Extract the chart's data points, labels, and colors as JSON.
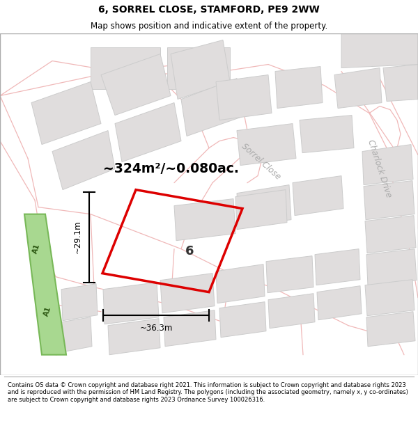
{
  "title": "6, SORREL CLOSE, STAMFORD, PE9 2WW",
  "subtitle": "Map shows position and indicative extent of the property.",
  "footer": "Contains OS data © Crown copyright and database right 2021. This information is subject to Crown copyright and database rights 2023 and is reproduced with the permission of HM Land Registry. The polygons (including the associated geometry, namely x, y co-ordinates) are subject to Crown copyright and database rights 2023 Ordnance Survey 100026316.",
  "map_bg": "#ffffff",
  "building_fill": "#e0dddd",
  "building_edge": "#cccccc",
  "road_line_color": "#f0b8b8",
  "highlight_color": "#dd0000",
  "green_fill": "#a8d890",
  "green_edge": "#78b858",
  "dim_29": "~29.1m",
  "dim_36": "~36.3m",
  "area_text": "~324m²/~0.080ac.",
  "plot_num": "6",
  "label_sorrel": "Sorrel Close",
  "label_charlock": "Charlock Drive",
  "label_a1": "A1",
  "sorrel_rotation": -42,
  "charlock_rotation": -72
}
